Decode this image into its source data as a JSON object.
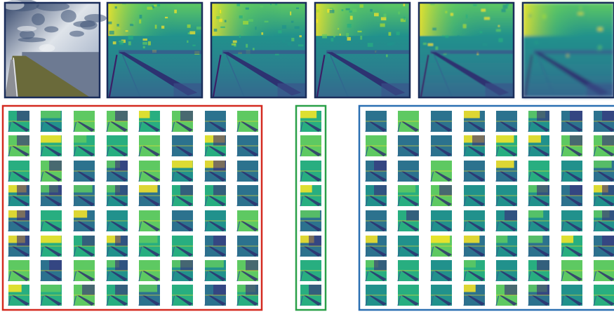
{
  "top_row": {
    "input_image": {
      "kind": "photo",
      "scene": "sea-dike-road-under-dramatic-sky"
    },
    "feature_maps": [
      {
        "style": "fine"
      },
      {
        "style": "fine"
      },
      {
        "style": "fine"
      },
      {
        "style": "medium"
      },
      {
        "style": "blurry"
      }
    ]
  },
  "groups": [
    {
      "name": "left-group",
      "border_color": "#d42a20",
      "rows": 8,
      "cols": 8
    },
    {
      "name": "middle-group",
      "border_color": "#2aa048",
      "rows": 8,
      "cols": 1
    },
    {
      "name": "right-group",
      "border_color": "#2a6fb2",
      "rows": 8,
      "cols": 8
    }
  ],
  "colors": {
    "frame": "#1a2d5a",
    "viridis_dark": "#3b1f66",
    "viridis_mid": "#21918c",
    "viridis_light": "#5ec962",
    "viridis_bright": "#fde725",
    "sky_dark": "#34466a",
    "sky_light": "#dfe4ea",
    "sea": "#6d7a92",
    "grass": "#6a6a3a"
  }
}
